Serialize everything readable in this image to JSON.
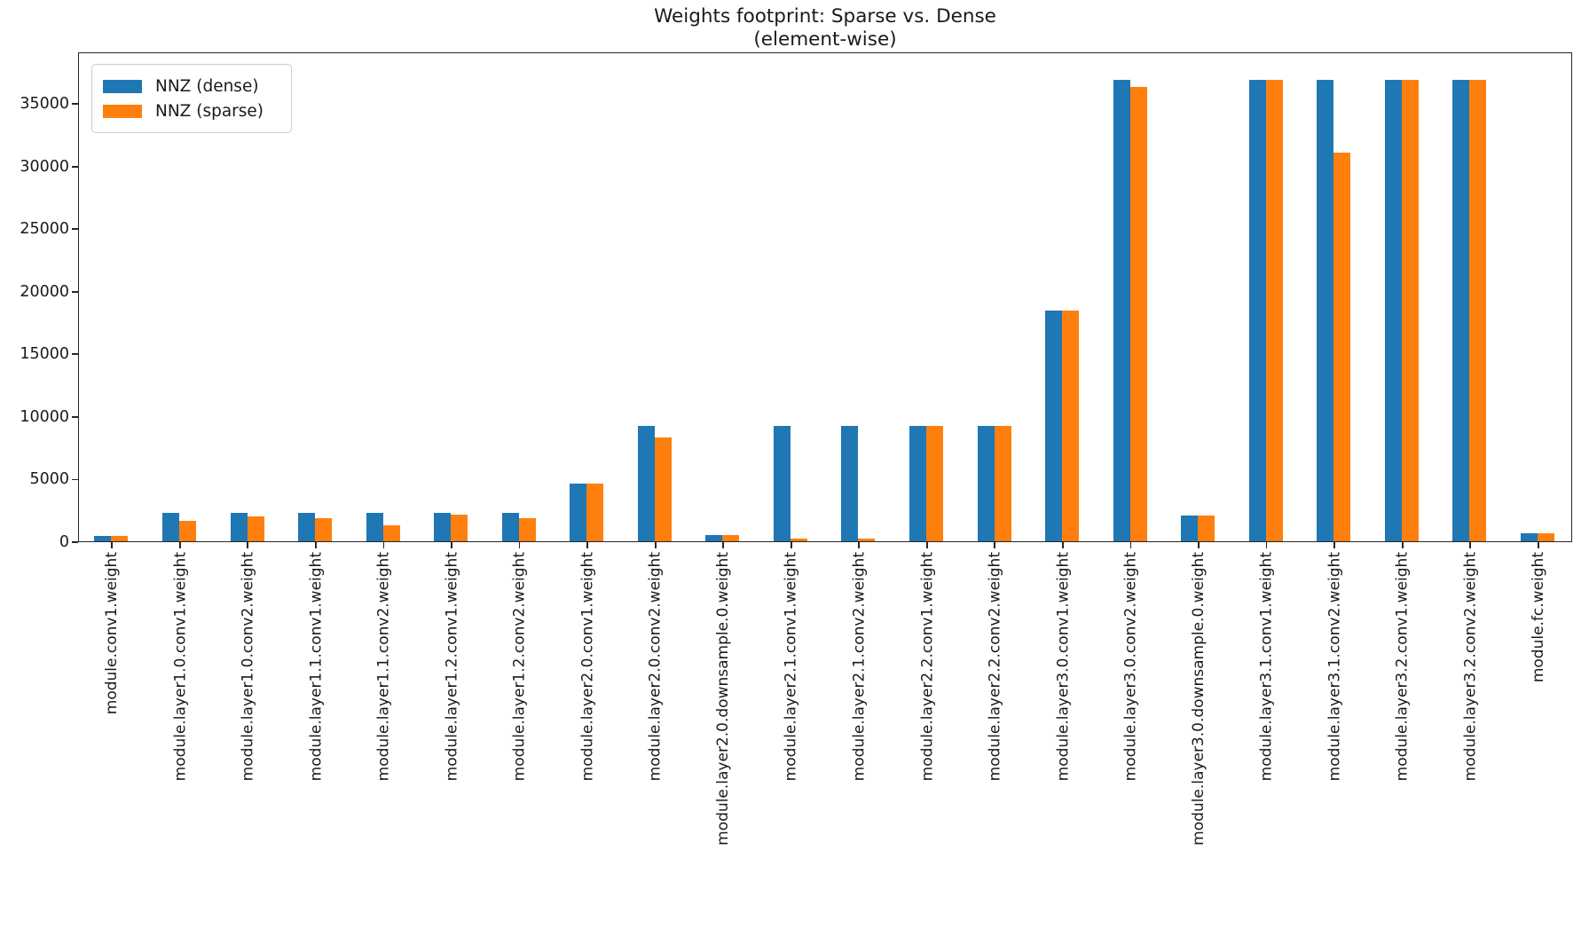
{
  "figure": {
    "title_line1": "Weights footprint: Sparse vs. Dense",
    "title_line2": "(element-wise)"
  },
  "legend": {
    "position": "upper left",
    "items": [
      {
        "label": "NNZ (dense)",
        "color": "#1f77b4"
      },
      {
        "label": "NNZ (sparse)",
        "color": "#ff7f0e"
      }
    ]
  },
  "chart_data": {
    "type": "bar",
    "title": "Weights footprint: Sparse vs. Dense\n(element-wise)",
    "title_lines": [
      "Weights footprint: Sparse vs. Dense",
      "(element-wise)"
    ],
    "xlabel": "",
    "ylabel": "",
    "grid": false,
    "legend_position": "upper left",
    "xticklabel_rotation": 90,
    "categories": [
      "module.conv1.weight",
      "module.layer1.0.conv1.weight",
      "module.layer1.0.conv2.weight",
      "module.layer1.1.conv1.weight",
      "module.layer1.1.conv2.weight",
      "module.layer1.2.conv1.weight",
      "module.layer1.2.conv2.weight",
      "module.layer2.0.conv1.weight",
      "module.layer2.0.conv2.weight",
      "module.layer2.0.downsample.0.weight",
      "module.layer2.1.conv1.weight",
      "module.layer2.1.conv2.weight",
      "module.layer2.2.conv1.weight",
      "module.layer2.2.conv2.weight",
      "module.layer3.0.conv1.weight",
      "module.layer3.0.conv2.weight",
      "module.layer3.0.downsample.0.weight",
      "module.layer3.1.conv1.weight",
      "module.layer3.1.conv2.weight",
      "module.layer3.2.conv1.weight",
      "module.layer3.2.conv2.weight",
      "module.fc.weight"
    ],
    "series": [
      {
        "name": "NNZ (dense)",
        "color": "#1f77b4",
        "values": [
          432,
          2304,
          2304,
          2304,
          2304,
          2304,
          2304,
          4608,
          9216,
          512,
          9216,
          9216,
          9216,
          9216,
          18432,
          36864,
          2048,
          36864,
          36864,
          36864,
          36864,
          640
        ]
      },
      {
        "name": "NNZ (sparse)",
        "color": "#ff7f0e",
        "values": [
          432,
          1610,
          1990,
          1850,
          1280,
          2110,
          1860,
          4608,
          8320,
          512,
          250,
          250,
          9216,
          9216,
          18432,
          36270,
          2048,
          36864,
          31060,
          36864,
          36864,
          640
        ]
      }
    ],
    "yticks": [
      0,
      5000,
      10000,
      15000,
      20000,
      25000,
      30000,
      35000
    ],
    "ylim": [
      0,
      39113
    ]
  }
}
